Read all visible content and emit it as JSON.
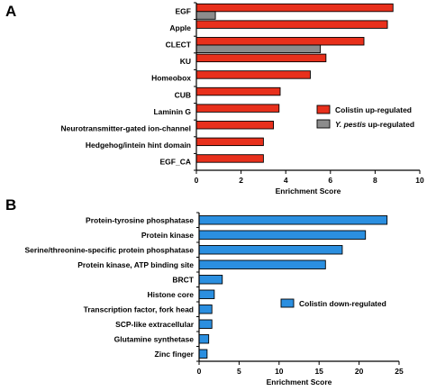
{
  "chart_data": [
    {
      "type": "bar",
      "orientation": "horizontal",
      "panel_label": "A",
      "categories": [
        "EGF",
        "Apple",
        "CLECT",
        "KU",
        "Homeobox",
        "CUB",
        "Laminin G",
        "Neurotransmitter-gated ion-channel",
        "Hedgehog/intein hint domain",
        "EGF_CA"
      ],
      "series": [
        {
          "name": "Colistin up-regulated",
          "color": "#e8301c",
          "values": [
            8.8,
            8.55,
            7.5,
            5.8,
            5.1,
            3.75,
            3.7,
            3.45,
            3.0,
            3.0
          ]
        },
        {
          "name": "Y. pestis up-regulated",
          "color": "#8c8c8c",
          "values": [
            0.85,
            null,
            5.55,
            null,
            null,
            null,
            null,
            null,
            null,
            null
          ]
        }
      ],
      "xlabel": "Enrichment Score",
      "xlim": [
        0,
        10
      ],
      "xticks": [
        0,
        2,
        4,
        6,
        8,
        10
      ],
      "legend_position": "bottom-right"
    },
    {
      "type": "bar",
      "orientation": "horizontal",
      "panel_label": "B",
      "categories": [
        "Protein-tyrosine phosphatase",
        "Protein kinase",
        "Serine/threonine-specific protein phosphatase",
        "Protein kinase, ATP binding site",
        "BRCT",
        "Histone core",
        "Transcription factor, fork head",
        "SCP-like extracellular",
        "Glutamine synthetase",
        "Zinc finger"
      ],
      "series": [
        {
          "name": "Colistin down-regulated",
          "color": "#2b8fe0",
          "values": [
            23.5,
            20.8,
            17.9,
            15.8,
            2.9,
            1.9,
            1.6,
            1.6,
            1.2,
            1.0
          ]
        }
      ],
      "xlabel": "Enrichment Score",
      "xlim": [
        0,
        25
      ],
      "xticks": [
        0,
        5,
        10,
        15,
        20,
        25
      ],
      "legend_position": "center-right"
    }
  ]
}
